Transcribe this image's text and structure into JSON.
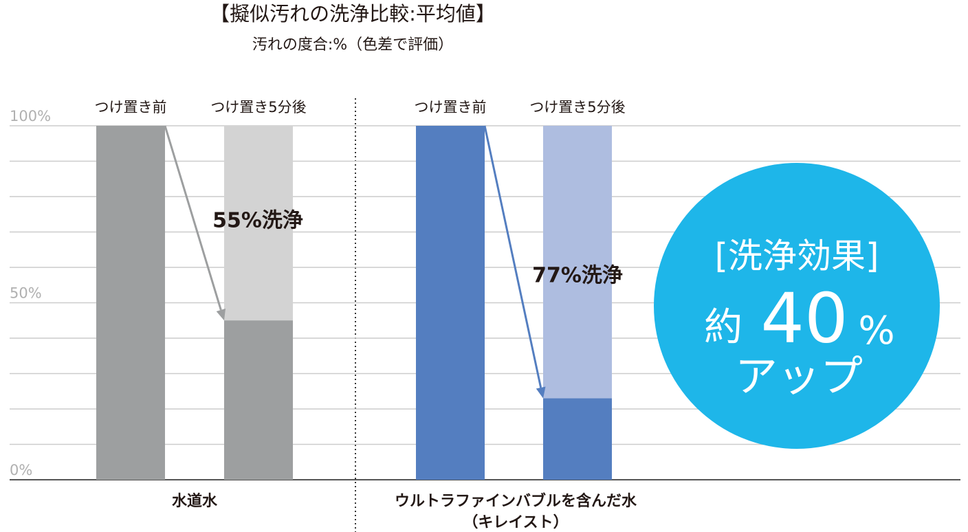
{
  "chart_data": {
    "type": "bar",
    "title": "【擬似汚れの洗浄比較:平均値】",
    "subtitle": "汚れの度合:%（色差で評価）",
    "ylim": [
      0,
      100
    ],
    "yticks": [
      {
        "value": 0,
        "label": "0%"
      },
      {
        "value": 50,
        "label": "50%"
      },
      {
        "value": 100,
        "label": "100%"
      }
    ],
    "minor_yticks": [
      10,
      20,
      30,
      40,
      60,
      70,
      80,
      90
    ],
    "grid": true,
    "groups": [
      {
        "name_lines": [
          "水道水"
        ],
        "categories": [
          "つけ置き前",
          "つけ置き5分後"
        ],
        "values": [
          100,
          45
        ],
        "color": "#9d9fa0",
        "light_color": "#d3d3d3",
        "annotation": "55%洗浄"
      },
      {
        "name_lines": [
          "ウルトラファインバブルを含んだ水",
          "（キレイスト）"
        ],
        "categories": [
          "つけ置き前",
          "つけ置き5分後"
        ],
        "values": [
          100,
          23
        ],
        "color": "#547ec0",
        "light_color": "#aebde0",
        "annotation": "77%洗浄"
      }
    ],
    "badge": {
      "heading": "[洗浄効果]",
      "prefix": "約",
      "number": "40",
      "unit": "%",
      "suffix": "アップ",
      "color": "#1eb6e9"
    }
  }
}
